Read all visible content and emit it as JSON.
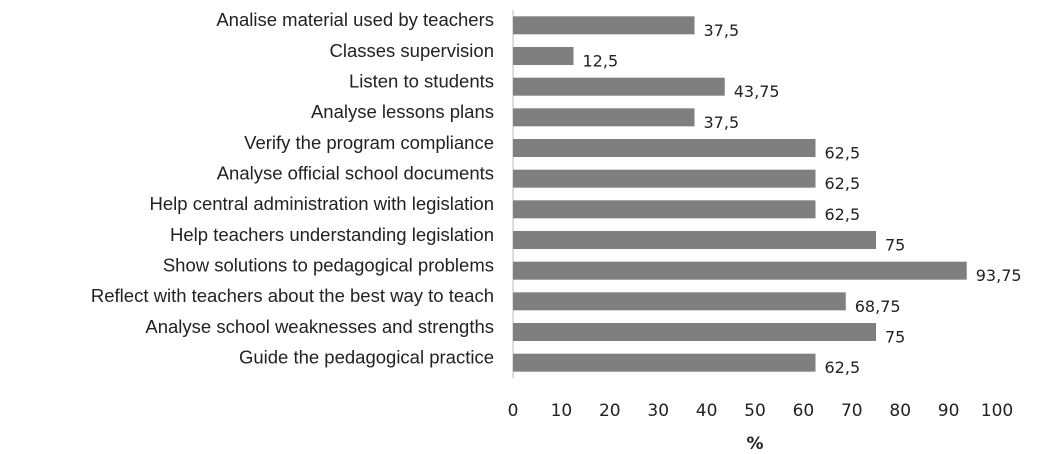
{
  "chart_data": {
    "type": "bar",
    "orientation": "horizontal",
    "categories": [
      "Analise material used by teachers",
      "Classes supervision",
      "Listen to students",
      "Analyse lessons plans",
      "Verify the program compliance",
      "Analyse official school documents",
      "Help central administration with legislation",
      "Help teachers understanding legislation",
      "Show solutions to pedagogical problems",
      "Reflect with teachers about the best way to teach",
      "Analyse school weaknesses and strengths",
      "Guide the pedagogical practice"
    ],
    "values": [
      37.5,
      12.5,
      43.75,
      37.5,
      62.5,
      62.5,
      62.5,
      75,
      93.75,
      68.75,
      75,
      62.5
    ],
    "value_labels": [
      "37,5",
      "12,5",
      "43,75",
      "37,5",
      "62,5",
      "62,5",
      "62,5",
      "75",
      "93,75",
      "68,75",
      "75",
      "62,5"
    ],
    "color": "#7f7f7f",
    "xlabel": "%",
    "xlim": [
      0,
      100
    ],
    "xticks": [
      0,
      10,
      20,
      30,
      40,
      50,
      60,
      70,
      80,
      90,
      100
    ],
    "grid": false
  }
}
